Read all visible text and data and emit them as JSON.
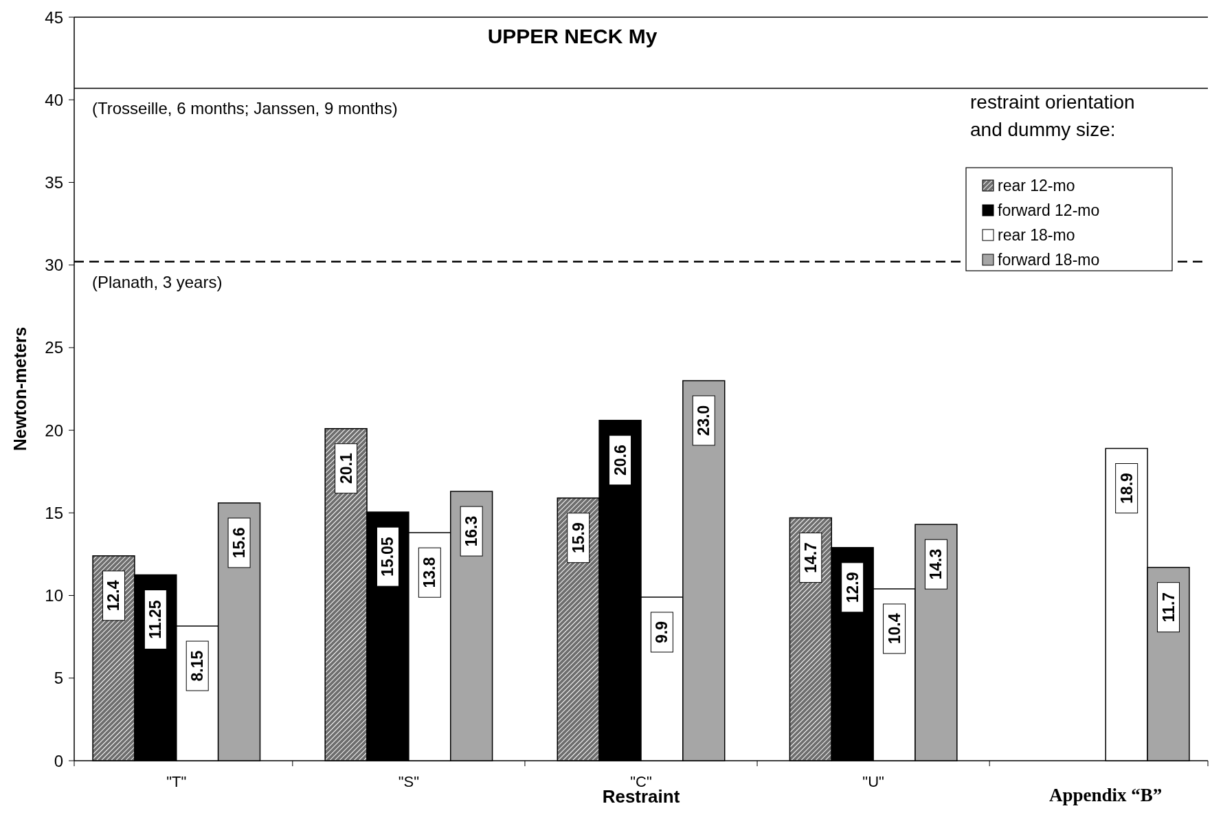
{
  "chart_data": {
    "type": "bar",
    "title": "UPPER NECK My",
    "xlabel": "Restraint",
    "ylabel": "Newton-meters",
    "legend_title": "restraint orientation and dummy size:",
    "categories": [
      "\"T\"",
      "\"S\"",
      "\"C\"",
      "\"U\"",
      null
    ],
    "series": [
      {
        "name": "rear 12-mo",
        "color": "#6e6e6e",
        "values": [
          12.4,
          20.1,
          15.9,
          14.7,
          null
        ],
        "value_labels": [
          "12.4",
          "20.1",
          "15.9",
          "14.7",
          null
        ]
      },
      {
        "name": "forward 12-mo",
        "color": "#000000",
        "values": [
          11.25,
          15.05,
          20.6,
          12.9,
          null
        ],
        "value_labels": [
          "11.25",
          "15.05",
          "20.6",
          "12.9",
          null
        ]
      },
      {
        "name": "rear 18-mo",
        "color": "#ffffff",
        "values": [
          8.15,
          13.8,
          9.9,
          10.4,
          18.9
        ],
        "value_labels": [
          "8.15",
          "13.8",
          "9.9",
          "10.4",
          "18.9"
        ]
      },
      {
        "name": "forward 18-mo",
        "color": "#a6a6a6",
        "values": [
          15.6,
          16.3,
          23.0,
          14.3,
          11.7
        ],
        "value_labels": [
          "15.6",
          "16.3",
          "23.0",
          "14.3",
          "11.7"
        ]
      }
    ],
    "ylim": [
      0,
      45
    ],
    "yticks": [
      0,
      5,
      10,
      15,
      20,
      25,
      30,
      35,
      40,
      45
    ],
    "legend": "top right",
    "ref_lines": [
      {
        "axis": "y",
        "value": 40.7,
        "label": "(Trosseille, 6 months; Janssen, 9 months)",
        "color": "#000000",
        "line_style": "solid"
      },
      {
        "axis": "y",
        "value": 30.2,
        "label": "(Planath, 3 years)",
        "color": "#000000",
        "line_style": "dashed"
      }
    ],
    "annotations": [
      "Appendix “B”"
    ]
  }
}
